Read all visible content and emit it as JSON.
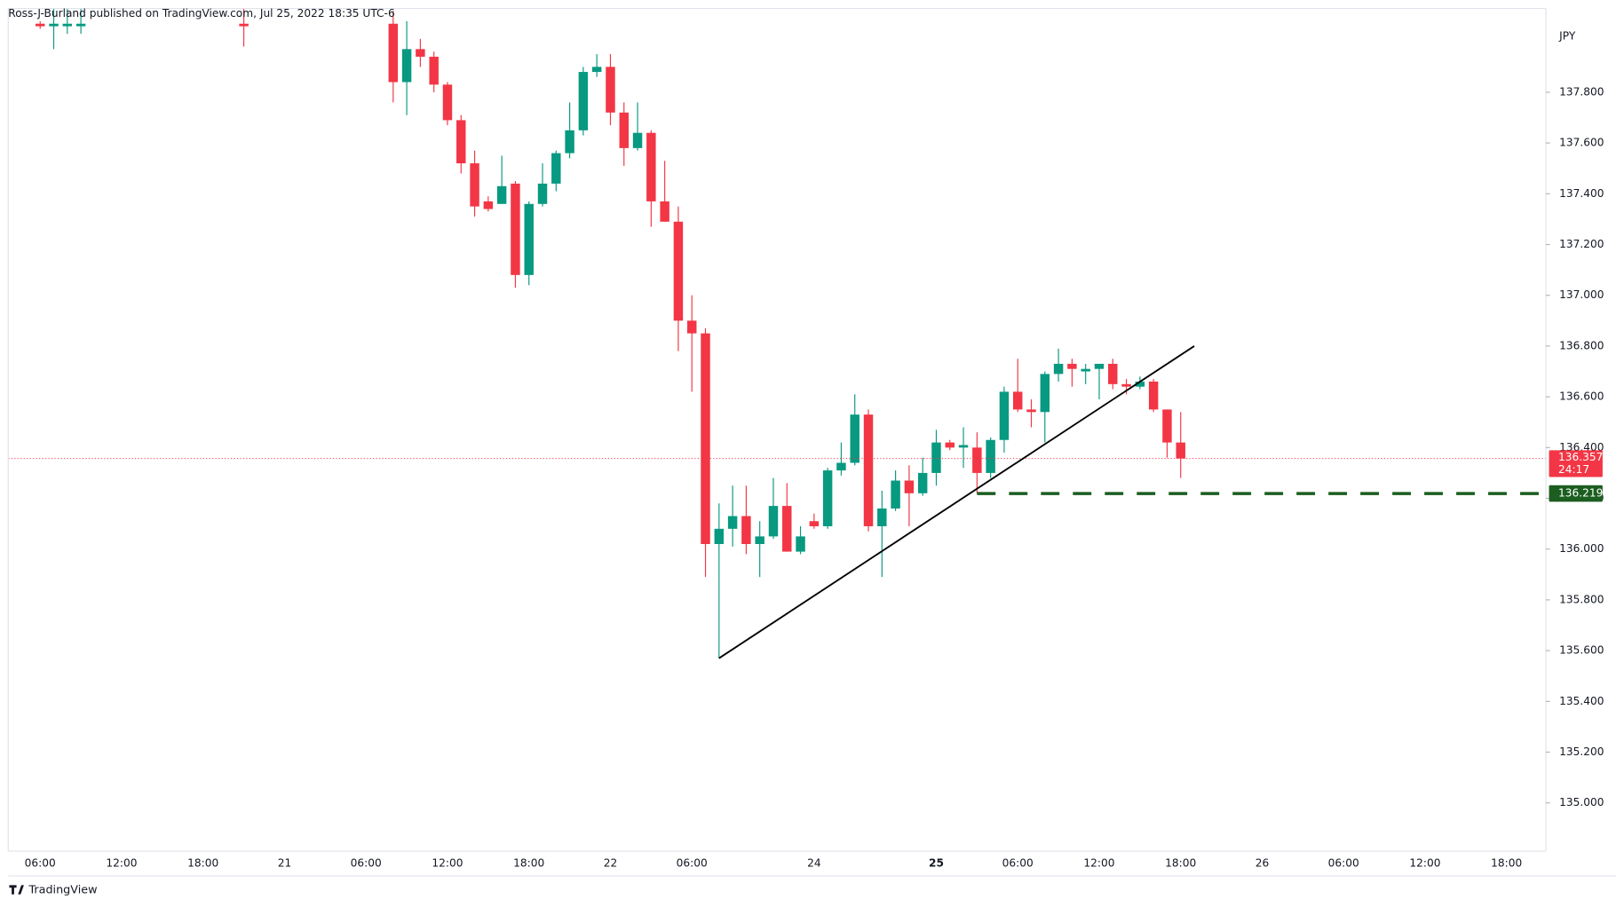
{
  "chart_data": {
    "type": "candlestick",
    "header": "Ross-J-Burland published on TradingView.com, Jul 25, 2022 18:35 UTC-6",
    "currency": "JPY",
    "brand": "TradingView",
    "up_color": "#089981",
    "down_color": "#f23645",
    "grid": true,
    "xlim": [
      -2.35,
      110.9
    ],
    "ylim": [
      134.81,
      138.13
    ],
    "xticks": [
      {
        "value": 0,
        "label": "06:00"
      },
      {
        "value": 6,
        "label": "12:00"
      },
      {
        "value": 12,
        "label": "18:00"
      },
      {
        "value": 18,
        "label": "21"
      },
      {
        "value": 24,
        "label": "06:00"
      },
      {
        "value": 30,
        "label": "12:00"
      },
      {
        "value": 36,
        "label": "18:00"
      },
      {
        "value": 42,
        "label": "22"
      },
      {
        "value": 48,
        "label": "06:00"
      },
      {
        "value": 57,
        "label": "24"
      },
      {
        "value": 66,
        "label": "25"
      },
      {
        "value": 72,
        "label": "06:00"
      },
      {
        "value": 78,
        "label": "12:00"
      },
      {
        "value": 84,
        "label": "18:00"
      },
      {
        "value": 90,
        "label": "26"
      },
      {
        "value": 96,
        "label": "06:00"
      },
      {
        "value": 102,
        "label": "12:00"
      },
      {
        "value": 108,
        "label": "18:00"
      }
    ],
    "yticks": [
      {
        "value": 135.0,
        "label": "135.000"
      },
      {
        "value": 135.2,
        "label": "135.200"
      },
      {
        "value": 135.4,
        "label": "135.400"
      },
      {
        "value": 135.6,
        "label": "135.600"
      },
      {
        "value": 135.8,
        "label": "135.800"
      },
      {
        "value": 136.0,
        "label": "136.000"
      },
      {
        "value": 136.2,
        "label": "136.200"
      },
      {
        "value": 136.4,
        "label": "136.400"
      },
      {
        "value": 136.6,
        "label": "136.600"
      },
      {
        "value": 136.8,
        "label": "136.800"
      },
      {
        "value": 137.0,
        "label": "137.000"
      },
      {
        "value": 137.2,
        "label": "137.200"
      },
      {
        "value": 137.4,
        "label": "137.400"
      },
      {
        "value": 137.6,
        "label": "137.600"
      },
      {
        "value": 137.8,
        "label": "137.800"
      }
    ],
    "x": [
      0,
      1,
      2,
      3,
      15,
      26,
      27,
      28,
      29,
      30,
      31,
      32,
      33,
      34,
      35,
      36,
      37,
      38,
      39,
      40,
      41,
      42,
      43,
      44,
      45,
      46,
      47,
      48,
      49,
      50,
      51,
      52,
      53,
      54,
      55,
      56,
      57,
      58,
      59,
      60,
      61,
      62,
      63,
      64,
      65,
      66,
      67,
      68,
      69,
      70,
      71,
      72,
      73,
      74,
      75,
      76,
      77,
      78,
      79,
      80,
      81,
      82,
      83,
      84
    ],
    "open": [
      138.07,
      138.06,
      138.06,
      138.06,
      138.07,
      138.07,
      137.84,
      137.97,
      137.94,
      137.83,
      137.69,
      137.52,
      137.37,
      137.36,
      137.44,
      137.08,
      137.36,
      137.44,
      137.56,
      137.65,
      137.88,
      137.9,
      137.72,
      137.58,
      137.64,
      137.37,
      137.29,
      136.9,
      136.85,
      136.02,
      136.08,
      136.13,
      136.02,
      136.05,
      136.17,
      135.99,
      136.11,
      136.09,
      136.31,
      136.34,
      136.53,
      136.09,
      136.16,
      136.27,
      136.22,
      136.3,
      136.42,
      136.4,
      136.4,
      136.3,
      136.43,
      136.62,
      136.55,
      136.54,
      136.69,
      136.73,
      136.7,
      136.71,
      136.73,
      136.65,
      136.64,
      136.66,
      136.55,
      136.42
    ],
    "high": [
      138.08,
      138.13,
      138.13,
      138.13,
      138.13,
      138.12,
      138.08,
      138.01,
      137.96,
      137.84,
      137.71,
      137.57,
      137.39,
      137.55,
      137.45,
      137.37,
      137.52,
      137.57,
      137.76,
      137.9,
      137.95,
      137.95,
      137.76,
      137.76,
      137.65,
      137.53,
      137.35,
      137.0,
      136.87,
      136.18,
      136.25,
      136.25,
      136.11,
      136.28,
      136.26,
      136.09,
      136.14,
      136.32,
      136.42,
      136.61,
      136.55,
      136.23,
      136.31,
      136.33,
      136.36,
      136.47,
      136.43,
      136.48,
      136.46,
      136.44,
      136.64,
      136.75,
      136.59,
      136.7,
      136.79,
      136.75,
      136.73,
      136.73,
      136.75,
      136.67,
      136.68,
      136.67,
      136.55,
      136.54
    ],
    "low": [
      138.05,
      137.97,
      138.03,
      138.03,
      137.98,
      137.76,
      137.71,
      137.9,
      137.8,
      137.67,
      137.48,
      137.31,
      137.33,
      137.36,
      137.03,
      137.04,
      137.35,
      137.41,
      137.54,
      137.63,
      137.86,
      137.67,
      137.51,
      137.57,
      137.27,
      137.29,
      136.78,
      136.62,
      135.89,
      135.57,
      136.01,
      135.98,
      135.89,
      136.04,
      135.99,
      135.98,
      136.08,
      136.08,
      136.29,
      136.33,
      136.07,
      135.89,
      136.15,
      136.09,
      136.21,
      136.25,
      136.39,
      136.32,
      136.22,
      136.28,
      136.38,
      136.54,
      136.48,
      136.42,
      136.66,
      136.64,
      136.65,
      136.59,
      136.63,
      136.61,
      136.63,
      136.54,
      136.36,
      136.28
    ],
    "close": [
      138.06,
      138.07,
      138.07,
      138.07,
      138.06,
      137.84,
      137.97,
      137.94,
      137.83,
      137.69,
      137.52,
      137.35,
      137.34,
      137.43,
      137.08,
      137.36,
      137.44,
      137.56,
      137.65,
      137.88,
      137.9,
      137.72,
      137.58,
      137.64,
      137.37,
      137.29,
      136.9,
      136.85,
      136.02,
      136.08,
      136.13,
      136.02,
      136.05,
      136.17,
      135.99,
      136.05,
      136.09,
      136.31,
      136.34,
      136.53,
      136.09,
      136.16,
      136.27,
      136.22,
      136.3,
      136.42,
      136.4,
      136.41,
      136.3,
      136.43,
      136.62,
      136.55,
      136.54,
      136.69,
      136.73,
      136.71,
      136.71,
      136.73,
      136.65,
      136.64,
      136.66,
      136.55,
      136.42,
      136.357
    ],
    "trendline": {
      "x": [
        50,
        85
      ],
      "y": [
        135.57,
        136.8
      ],
      "color": "#000000"
    },
    "level": {
      "value": 136.219,
      "x_start": 69,
      "color": "#1b5e20"
    },
    "last_price": {
      "value": 136.357,
      "countdown": "24:17"
    }
  }
}
